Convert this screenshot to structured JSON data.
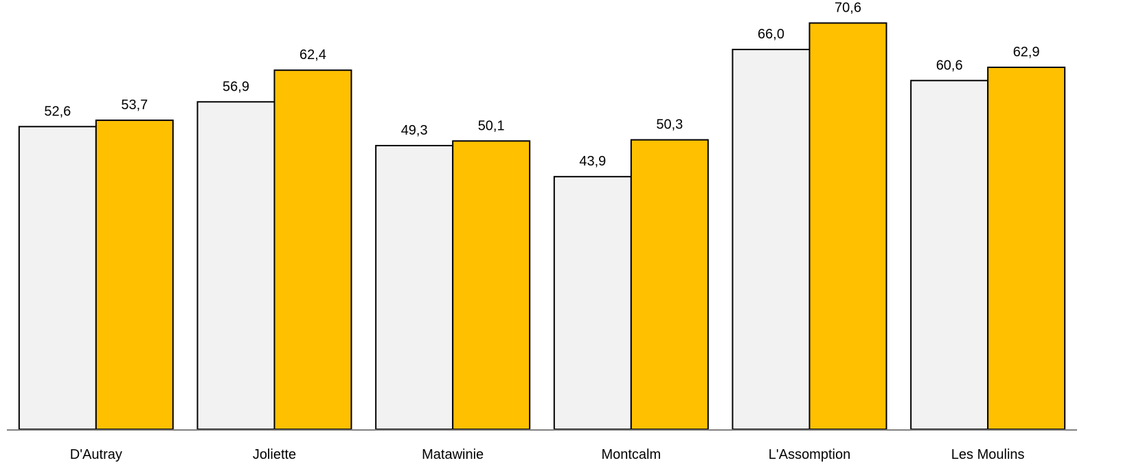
{
  "chart_data": {
    "type": "bar",
    "categories": [
      "D'Autray",
      "Joliette",
      "Matawinie",
      "Montcalm",
      "L'Assomption",
      "Les Moulins"
    ],
    "series": [
      {
        "values": [
          52.6,
          56.9,
          49.3,
          43.9,
          66.0,
          60.6
        ],
        "labels": [
          "52,6",
          "56,9",
          "49,3",
          "43,9",
          "66,0",
          "60,6"
        ],
        "color": "#f2f2f2"
      },
      {
        "values": [
          53.7,
          62.4,
          50.1,
          50.3,
          70.6,
          62.9
        ],
        "labels": [
          "53,7",
          "62,4",
          "50,1",
          "50,3",
          "70,6",
          "62,9"
        ],
        "color": "#ffc000"
      }
    ],
    "ylim": [
      0,
      74.6
    ],
    "grid": false,
    "legend": "none",
    "bar_outline_color": "#000000",
    "axis_color": "#808080"
  }
}
